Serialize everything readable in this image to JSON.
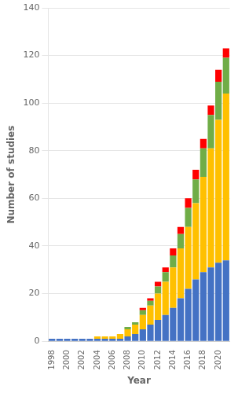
{
  "chart_data": {
    "type": "bar",
    "stacked": true,
    "grid": true,
    "xlabel": "Year",
    "ylabel": "Number of studies",
    "categories": [
      "1998",
      null,
      "2000",
      null,
      "2002",
      null,
      "2004",
      null,
      "2006",
      null,
      "2008",
      null,
      "2010",
      null,
      "2012",
      null,
      "2014",
      null,
      "2016",
      null,
      "2018",
      null,
      "2020",
      null
    ],
    "series": [
      {
        "color": "#4472C4",
        "values": [
          1,
          1,
          1,
          1,
          1,
          1,
          1,
          1,
          1,
          1,
          2,
          3,
          5,
          7,
          9,
          11,
          14,
          18,
          22,
          26,
          29,
          31,
          33,
          34
        ]
      },
      {
        "color": "#FFC000",
        "values": [
          0,
          0,
          0,
          0,
          0,
          0,
          1,
          1,
          1,
          2,
          3,
          4,
          6,
          8,
          11,
          14,
          17,
          21,
          26,
          32,
          40,
          50,
          60,
          70
        ]
      },
      {
        "color": "#70AD47",
        "values": [
          0,
          0,
          0,
          0,
          0,
          0,
          0,
          0,
          0,
          0,
          1,
          1,
          2,
          2,
          3,
          4,
          5,
          6,
          8,
          10,
          12,
          14,
          16,
          15
        ]
      },
      {
        "color": "#FF0000",
        "values": [
          0,
          0,
          0,
          0,
          0,
          0,
          0,
          0,
          0,
          0,
          0,
          0,
          1,
          1,
          2,
          2,
          3,
          3,
          4,
          4,
          4,
          4,
          5,
          4
        ]
      }
    ],
    "ylim": [
      0,
      140
    ],
    "yticks": [
      0,
      20,
      40,
      60,
      80,
      100,
      120,
      140
    ]
  }
}
